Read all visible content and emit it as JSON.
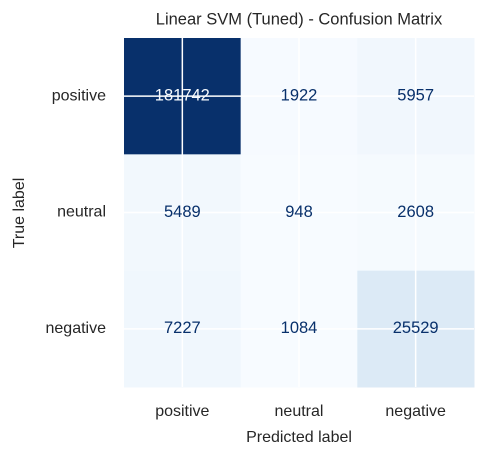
{
  "chart_data": {
    "type": "heatmap",
    "title": "Linear SVM (Tuned) - Confusion Matrix",
    "x_label": "Predicted label",
    "y_label": "True label",
    "x_categories": [
      "positive",
      "neutral",
      "negative"
    ],
    "y_categories": [
      "positive",
      "neutral",
      "negative"
    ],
    "values": [
      [
        181742,
        1922,
        5957
      ],
      [
        5489,
        948,
        2608
      ],
      [
        7227,
        1084,
        25529
      ]
    ],
    "colormap": "Blues",
    "grid": true
  }
}
